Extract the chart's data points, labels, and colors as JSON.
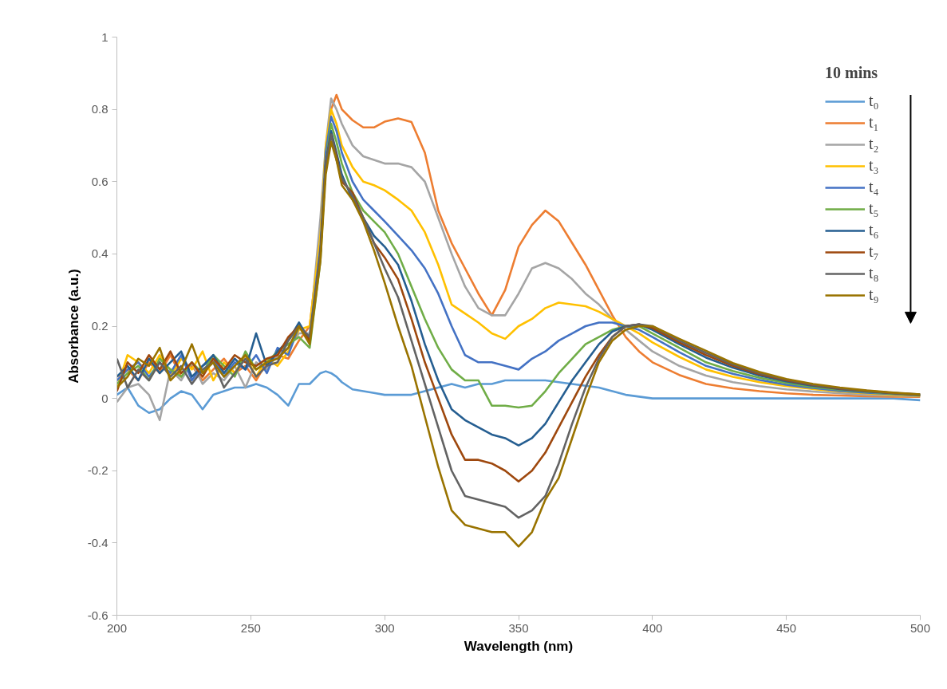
{
  "chart_data": {
    "type": "line",
    "xlabel": "Wavelength (nm)",
    "ylabel": "Absorbance (a.u.)",
    "legend_title": "10 mins",
    "legend": "top right",
    "xlim": [
      200,
      500
    ],
    "ylim": [
      -0.6,
      1
    ],
    "xticks": [
      200,
      250,
      300,
      350,
      400,
      450,
      500
    ],
    "yticks": [
      -0.6,
      -0.4,
      -0.2,
      0,
      0.2,
      0.4,
      0.6,
      0.8,
      1
    ],
    "x": [
      200,
      204,
      208,
      212,
      216,
      220,
      224,
      228,
      232,
      236,
      240,
      244,
      248,
      252,
      256,
      260,
      264,
      268,
      272,
      276,
      278,
      280,
      282,
      284,
      288,
      292,
      296,
      300,
      305,
      310,
      315,
      320,
      325,
      330,
      335,
      340,
      345,
      350,
      355,
      360,
      365,
      370,
      375,
      380,
      385,
      390,
      395,
      400,
      410,
      420,
      430,
      440,
      450,
      460,
      470,
      480,
      490,
      500
    ],
    "series": [
      {
        "name": "t₀",
        "color": "#5b9bd5",
        "values": [
          0.01,
          0.03,
          -0.02,
          -0.04,
          -0.03,
          0.0,
          0.02,
          0.01,
          -0.03,
          0.01,
          0.02,
          0.03,
          0.03,
          0.04,
          0.03,
          0.01,
          -0.02,
          0.04,
          0.04,
          0.07,
          0.075,
          0.07,
          0.06,
          0.045,
          0.025,
          0.02,
          0.015,
          0.01,
          0.01,
          0.01,
          0.02,
          0.03,
          0.04,
          0.03,
          0.04,
          0.04,
          0.05,
          0.05,
          0.05,
          0.05,
          0.045,
          0.04,
          0.035,
          0.03,
          0.02,
          0.01,
          0.005,
          0.0,
          0.0,
          0.0,
          0.0,
          0.0,
          0.0,
          0.0,
          0.0,
          0.0,
          0.0,
          -0.005
        ]
      },
      {
        "name": "t₁",
        "color": "#ed7d31",
        "values": [
          0.06,
          0.08,
          0.05,
          0.1,
          0.07,
          0.12,
          0.06,
          0.09,
          0.05,
          0.08,
          0.11,
          0.07,
          0.09,
          0.05,
          0.1,
          0.12,
          0.11,
          0.16,
          0.2,
          0.45,
          0.68,
          0.8,
          0.84,
          0.8,
          0.77,
          0.75,
          0.75,
          0.766,
          0.775,
          0.765,
          0.68,
          0.52,
          0.43,
          0.36,
          0.29,
          0.23,
          0.3,
          0.42,
          0.48,
          0.52,
          0.49,
          0.43,
          0.37,
          0.3,
          0.23,
          0.17,
          0.13,
          0.1,
          0.065,
          0.04,
          0.028,
          0.02,
          0.014,
          0.01,
          0.008,
          0.006,
          0.005,
          0.004
        ]
      },
      {
        "name": "t₂",
        "color": "#a5a5a5",
        "values": [
          -0.01,
          0.03,
          0.04,
          0.01,
          -0.06,
          0.08,
          0.05,
          0.1,
          0.04,
          0.07,
          0.05,
          0.09,
          0.03,
          0.1,
          0.08,
          0.12,
          0.14,
          0.18,
          0.18,
          0.5,
          0.7,
          0.83,
          0.8,
          0.76,
          0.7,
          0.67,
          0.66,
          0.65,
          0.65,
          0.64,
          0.6,
          0.5,
          0.4,
          0.31,
          0.25,
          0.23,
          0.23,
          0.29,
          0.36,
          0.375,
          0.36,
          0.33,
          0.29,
          0.26,
          0.22,
          0.19,
          0.16,
          0.13,
          0.09,
          0.063,
          0.045,
          0.034,
          0.025,
          0.019,
          0.014,
          0.01,
          0.008,
          0.006
        ]
      },
      {
        "name": "t₃",
        "color": "#ffc000",
        "values": [
          0.03,
          0.12,
          0.1,
          0.07,
          0.12,
          0.06,
          0.11,
          0.08,
          0.13,
          0.05,
          0.1,
          0.07,
          0.12,
          0.06,
          0.11,
          0.09,
          0.13,
          0.19,
          0.2,
          0.45,
          0.7,
          0.8,
          0.76,
          0.7,
          0.64,
          0.6,
          0.59,
          0.576,
          0.55,
          0.52,
          0.46,
          0.37,
          0.26,
          0.235,
          0.21,
          0.18,
          0.165,
          0.2,
          0.22,
          0.25,
          0.265,
          0.26,
          0.255,
          0.24,
          0.22,
          0.2,
          0.18,
          0.155,
          0.115,
          0.08,
          0.06,
          0.045,
          0.034,
          0.026,
          0.019,
          0.014,
          0.01,
          0.007
        ]
      },
      {
        "name": "t₄",
        "color": "#4472c4",
        "values": [
          0.05,
          0.08,
          0.1,
          0.06,
          0.1,
          0.07,
          0.12,
          0.05,
          0.09,
          0.11,
          0.06,
          0.1,
          0.08,
          0.12,
          0.07,
          0.14,
          0.12,
          0.2,
          0.17,
          0.42,
          0.68,
          0.78,
          0.74,
          0.68,
          0.6,
          0.55,
          0.52,
          0.49,
          0.45,
          0.41,
          0.36,
          0.29,
          0.2,
          0.12,
          0.1,
          0.1,
          0.09,
          0.08,
          0.11,
          0.13,
          0.16,
          0.18,
          0.2,
          0.21,
          0.21,
          0.2,
          0.19,
          0.17,
          0.128,
          0.09,
          0.068,
          0.051,
          0.038,
          0.029,
          0.021,
          0.016,
          0.012,
          0.008
        ]
      },
      {
        "name": "t₅",
        "color": "#70ad47",
        "values": [
          0.04,
          0.07,
          0.09,
          0.05,
          0.11,
          0.08,
          0.06,
          0.1,
          0.07,
          0.12,
          0.09,
          0.06,
          0.13,
          0.08,
          0.1,
          0.13,
          0.15,
          0.17,
          0.14,
          0.38,
          0.65,
          0.76,
          0.71,
          0.65,
          0.57,
          0.52,
          0.49,
          0.46,
          0.4,
          0.31,
          0.22,
          0.14,
          0.08,
          0.05,
          0.05,
          -0.02,
          -0.02,
          -0.025,
          -0.02,
          0.02,
          0.07,
          0.11,
          0.15,
          0.17,
          0.19,
          0.2,
          0.2,
          0.18,
          0.14,
          0.1,
          0.076,
          0.057,
          0.043,
          0.032,
          0.024,
          0.018,
          0.013,
          0.009
        ]
      },
      {
        "name": "t₆",
        "color": "#255e91",
        "values": [
          0.06,
          0.09,
          0.05,
          0.11,
          0.07,
          0.1,
          0.13,
          0.06,
          0.09,
          0.12,
          0.07,
          0.11,
          0.08,
          0.18,
          0.09,
          0.13,
          0.16,
          0.21,
          0.16,
          0.4,
          0.65,
          0.74,
          0.68,
          0.62,
          0.55,
          0.5,
          0.45,
          0.42,
          0.37,
          0.27,
          0.15,
          0.05,
          -0.03,
          -0.06,
          -0.08,
          -0.1,
          -0.11,
          -0.13,
          -0.11,
          -0.07,
          -0.01,
          0.05,
          0.1,
          0.15,
          0.185,
          0.2,
          0.205,
          0.19,
          0.15,
          0.113,
          0.085,
          0.063,
          0.047,
          0.035,
          0.026,
          0.019,
          0.014,
          0.01
        ]
      },
      {
        "name": "t₇",
        "color": "#9e480e",
        "values": [
          0.02,
          0.1,
          0.07,
          0.12,
          0.08,
          0.13,
          0.07,
          0.1,
          0.06,
          0.11,
          0.08,
          0.12,
          0.1,
          0.09,
          0.11,
          0.12,
          0.17,
          0.2,
          0.16,
          0.4,
          0.65,
          0.73,
          0.67,
          0.6,
          0.57,
          0.5,
          0.43,
          0.39,
          0.33,
          0.22,
          0.1,
          0.0,
          -0.1,
          -0.17,
          -0.17,
          -0.18,
          -0.2,
          -0.23,
          -0.2,
          -0.15,
          -0.08,
          -0.01,
          0.06,
          0.12,
          0.17,
          0.2,
          0.205,
          0.195,
          0.155,
          0.12,
          0.09,
          0.067,
          0.05,
          0.037,
          0.027,
          0.02,
          0.015,
          0.01
        ]
      },
      {
        "name": "t₈",
        "color": "#636363",
        "values": [
          0.11,
          0.03,
          0.08,
          0.05,
          0.1,
          0.06,
          0.09,
          0.04,
          0.08,
          0.1,
          0.03,
          0.07,
          0.11,
          0.06,
          0.09,
          0.1,
          0.16,
          0.2,
          0.17,
          0.4,
          0.65,
          0.73,
          0.66,
          0.61,
          0.56,
          0.5,
          0.43,
          0.36,
          0.28,
          0.16,
          0.04,
          -0.08,
          -0.2,
          -0.27,
          -0.28,
          -0.29,
          -0.3,
          -0.33,
          -0.31,
          -0.27,
          -0.18,
          -0.07,
          0.03,
          0.11,
          0.17,
          0.2,
          0.205,
          0.2,
          0.16,
          0.126,
          0.094,
          0.07,
          0.052,
          0.038,
          0.028,
          0.021,
          0.015,
          0.011
        ]
      },
      {
        "name": "t₉",
        "color": "#997300",
        "values": [
          0.03,
          0.06,
          0.11,
          0.09,
          0.14,
          0.05,
          0.08,
          0.15,
          0.07,
          0.1,
          0.06,
          0.09,
          0.12,
          0.08,
          0.1,
          0.11,
          0.14,
          0.2,
          0.15,
          0.38,
          0.62,
          0.71,
          0.66,
          0.59,
          0.55,
          0.49,
          0.41,
          0.32,
          0.2,
          0.09,
          -0.05,
          -0.19,
          -0.31,
          -0.35,
          -0.36,
          -0.37,
          -0.37,
          -0.41,
          -0.37,
          -0.28,
          -0.22,
          -0.11,
          0.0,
          0.1,
          0.16,
          0.19,
          0.2,
          0.2,
          0.165,
          0.132,
          0.098,
          0.073,
          0.054,
          0.04,
          0.03,
          0.022,
          0.016,
          0.011
        ]
      }
    ]
  }
}
